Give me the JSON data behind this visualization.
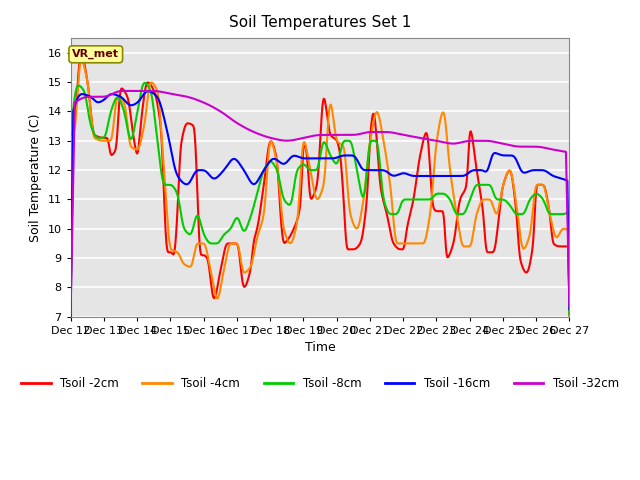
{
  "title": "Soil Temperatures Set 1",
  "xlabel": "Time",
  "ylabel": "Soil Temperature (C)",
  "ylim": [
    7.0,
    16.5
  ],
  "yticks": [
    7.0,
    8.0,
    9.0,
    10.0,
    11.0,
    12.0,
    13.0,
    14.0,
    15.0,
    16.0
  ],
  "background_color": "#ffffff",
  "plot_bg_color": "#e5e5e5",
  "grid_color": "#ffffff",
  "series_colors": [
    "#ff0000",
    "#ff8800",
    "#00cc00",
    "#0000ff",
    "#cc00cc"
  ],
  "series_labels": [
    "Tsoil -2cm",
    "Tsoil -4cm",
    "Tsoil -8cm",
    "Tsoil -16cm",
    "Tsoil -32cm"
  ],
  "x_tick_labels": [
    "Dec 12",
    "Dec 13",
    "Dec 14",
    "Dec 15",
    "Dec 16",
    "Dec 17",
    "Dec 18",
    "Dec 19",
    "Dec 20",
    "Dec 21",
    "Dec 22",
    "Dec 23",
    "Dec 24",
    "Dec 25",
    "Dec 26",
    "Dec 27"
  ],
  "annotation_text": "VR_met",
  "line_width": 1.5,
  "n_points": 720,
  "tsoil_2cm_x": [
    0,
    0.1,
    0.3,
    0.5,
    0.7,
    1.0,
    1.1,
    1.2,
    1.35,
    1.5,
    1.7,
    1.9,
    2.0,
    2.1,
    2.3,
    2.5,
    2.7,
    2.9,
    3.0,
    3.1,
    3.2,
    3.3,
    3.5,
    3.7,
    3.9,
    4.0,
    4.1,
    4.3,
    4.5,
    4.7,
    5.0,
    5.2,
    5.4,
    5.5,
    5.6,
    5.8,
    6.0,
    6.2,
    6.3,
    6.4,
    6.5,
    6.7,
    6.9,
    7.0,
    7.1,
    7.2,
    7.4,
    7.6,
    7.8,
    8.0,
    8.1,
    8.2,
    8.3,
    8.5,
    8.7,
    8.9,
    9.0,
    9.1,
    9.2,
    9.3,
    9.5,
    9.7,
    9.9,
    10.0,
    10.1,
    10.3,
    10.5,
    10.7,
    10.9,
    11.0,
    11.2,
    11.3,
    11.5,
    11.7,
    11.9,
    12.0,
    12.2,
    12.4,
    12.5,
    12.7,
    13.0,
    13.2,
    13.4,
    13.5,
    13.7,
    13.9,
    14.0,
    14.2,
    14.4,
    14.5,
    14.7,
    15.0
  ],
  "tsoil_2cm_y": [
    13.1,
    13.5,
    16.0,
    15.0,
    13.2,
    13.1,
    13.1,
    12.5,
    12.7,
    14.8,
    14.5,
    13.0,
    12.5,
    13.6,
    15.0,
    14.7,
    13.5,
    9.2,
    9.2,
    9.1,
    10.5,
    12.8,
    13.6,
    13.5,
    9.1,
    9.1,
    9.0,
    7.6,
    8.6,
    9.5,
    9.5,
    8.0,
    8.6,
    9.6,
    10.0,
    11.5,
    13.0,
    12.3,
    10.5,
    9.5,
    9.6,
    10.0,
    10.8,
    13.0,
    12.5,
    11.0,
    11.5,
    14.5,
    13.2,
    13.0,
    12.5,
    11.0,
    9.3,
    9.3,
    9.5,
    11.0,
    13.2,
    14.0,
    13.0,
    11.5,
    10.5,
    9.5,
    9.3,
    9.3,
    10.0,
    11.0,
    12.5,
    13.3,
    10.7,
    10.6,
    10.6,
    9.0,
    9.5,
    11.0,
    11.5,
    13.4,
    12.0,
    10.5,
    9.2,
    9.2,
    11.5,
    12.0,
    10.5,
    9.0,
    8.5,
    9.5,
    11.5,
    11.5,
    10.5,
    9.5,
    9.4,
    9.4
  ],
  "tsoil_4cm_x": [
    0,
    0.1,
    0.3,
    0.5,
    0.7,
    1.0,
    1.2,
    1.4,
    1.6,
    1.8,
    2.0,
    2.2,
    2.4,
    2.6,
    2.8,
    3.0,
    3.2,
    3.4,
    3.6,
    3.8,
    4.0,
    4.2,
    4.4,
    4.6,
    4.8,
    5.0,
    5.2,
    5.4,
    5.6,
    5.8,
    6.0,
    6.2,
    6.4,
    6.6,
    6.8,
    7.0,
    7.2,
    7.4,
    7.6,
    7.8,
    8.0,
    8.2,
    8.4,
    8.6,
    8.8,
    9.0,
    9.2,
    9.4,
    9.6,
    9.8,
    10.0,
    10.2,
    10.4,
    10.6,
    10.8,
    11.0,
    11.2,
    11.4,
    11.6,
    11.8,
    12.0,
    12.2,
    12.4,
    12.6,
    12.8,
    13.0,
    13.2,
    13.4,
    13.6,
    13.8,
    14.0,
    14.2,
    14.4,
    14.6,
    14.8,
    15.0
  ],
  "tsoil_4cm_y": [
    13.1,
    13.3,
    15.8,
    15.0,
    13.1,
    13.0,
    13.0,
    14.5,
    14.3,
    12.8,
    12.7,
    13.5,
    15.0,
    14.7,
    12.0,
    9.3,
    9.2,
    8.8,
    8.7,
    9.5,
    9.5,
    8.6,
    7.6,
    8.6,
    9.5,
    9.5,
    8.5,
    8.7,
    9.7,
    10.5,
    13.0,
    12.2,
    10.0,
    9.5,
    10.2,
    13.0,
    12.0,
    11.0,
    11.5,
    14.3,
    13.0,
    12.8,
    10.5,
    10.0,
    11.0,
    13.0,
    14.0,
    13.0,
    11.5,
    9.5,
    9.5,
    9.5,
    9.5,
    9.5,
    10.5,
    13.0,
    14.0,
    12.0,
    10.5,
    9.4,
    9.4,
    10.5,
    11.0,
    11.0,
    10.5,
    11.5,
    12.0,
    10.8,
    9.3,
    9.8,
    11.5,
    11.5,
    10.5,
    9.7,
    10.0,
    9.9
  ],
  "tsoil_8cm_x": [
    0,
    0.2,
    0.4,
    0.6,
    0.8,
    1.0,
    1.2,
    1.4,
    1.6,
    1.8,
    2.0,
    2.2,
    2.4,
    2.6,
    2.8,
    3.0,
    3.2,
    3.4,
    3.6,
    3.8,
    4.0,
    4.2,
    4.4,
    4.6,
    4.8,
    5.0,
    5.2,
    5.4,
    5.6,
    5.8,
    6.0,
    6.2,
    6.4,
    6.6,
    6.8,
    7.0,
    7.2,
    7.4,
    7.6,
    7.8,
    8.0,
    8.2,
    8.4,
    8.6,
    8.8,
    9.0,
    9.2,
    9.4,
    9.6,
    9.8,
    10.0,
    10.2,
    10.4,
    10.6,
    10.8,
    11.0,
    11.2,
    11.4,
    11.6,
    11.8,
    12.0,
    12.2,
    12.4,
    12.6,
    12.8,
    13.0,
    13.2,
    13.4,
    13.6,
    13.8,
    14.0,
    14.2,
    14.4,
    14.6,
    14.8,
    15.0
  ],
  "tsoil_8cm_y": [
    13.3,
    14.9,
    14.7,
    13.5,
    13.1,
    13.1,
    14.0,
    14.5,
    14.0,
    13.0,
    14.0,
    15.0,
    14.7,
    13.0,
    11.5,
    11.5,
    11.2,
    10.0,
    9.8,
    10.5,
    9.8,
    9.5,
    9.5,
    9.8,
    10.0,
    10.4,
    9.9,
    10.4,
    11.2,
    12.0,
    12.3,
    12.0,
    11.0,
    10.8,
    12.0,
    12.2,
    12.0,
    12.0,
    13.0,
    12.5,
    12.2,
    13.0,
    13.0,
    12.0,
    11.0,
    13.0,
    13.0,
    11.0,
    10.5,
    10.5,
    11.0,
    11.0,
    11.0,
    11.0,
    11.0,
    11.2,
    11.2,
    11.0,
    10.5,
    10.5,
    11.0,
    11.5,
    11.5,
    11.5,
    11.0,
    11.0,
    10.8,
    10.5,
    10.5,
    11.0,
    11.2,
    11.0,
    10.5,
    10.5,
    10.5,
    10.6
  ],
  "tsoil_16cm_x": [
    0,
    0.3,
    0.6,
    0.8,
    1.0,
    1.2,
    1.5,
    1.8,
    2.0,
    2.3,
    2.6,
    2.9,
    3.2,
    3.5,
    3.8,
    4.0,
    4.3,
    4.6,
    4.9,
    5.2,
    5.5,
    5.8,
    6.1,
    6.4,
    6.7,
    7.0,
    7.3,
    7.6,
    7.9,
    8.2,
    8.5,
    8.8,
    9.1,
    9.4,
    9.7,
    10.0,
    10.3,
    10.6,
    10.9,
    11.2,
    11.5,
    11.8,
    12.1,
    12.4,
    12.5,
    12.7,
    13.0,
    13.3,
    13.6,
    13.9,
    14.2,
    14.5,
    14.8,
    15.0
  ],
  "tsoil_16cm_y": [
    13.7,
    14.6,
    14.5,
    14.3,
    14.4,
    14.6,
    14.5,
    14.2,
    14.3,
    14.7,
    14.5,
    13.3,
    11.8,
    11.5,
    12.0,
    12.0,
    11.7,
    12.0,
    12.4,
    12.0,
    11.5,
    12.0,
    12.4,
    12.2,
    12.5,
    12.4,
    12.4,
    12.4,
    12.4,
    12.5,
    12.5,
    12.0,
    12.0,
    12.0,
    11.8,
    11.9,
    11.8,
    11.8,
    11.8,
    11.8,
    11.8,
    11.8,
    12.0,
    12.0,
    11.9,
    12.6,
    12.5,
    12.5,
    11.9,
    12.0,
    12.0,
    11.8,
    11.7,
    11.6
  ],
  "tsoil_32cm_x": [
    0,
    0.5,
    1.0,
    1.5,
    2.0,
    2.5,
    3.0,
    3.5,
    4.0,
    4.5,
    5.0,
    5.5,
    6.0,
    6.5,
    7.0,
    7.5,
    8.0,
    8.5,
    9.0,
    9.5,
    10.0,
    10.5,
    11.0,
    11.5,
    12.0,
    12.5,
    13.0,
    13.5,
    14.0,
    14.5,
    15.0
  ],
  "tsoil_32cm_y": [
    14.2,
    14.5,
    14.5,
    14.7,
    14.7,
    14.7,
    14.6,
    14.5,
    14.3,
    14.0,
    13.6,
    13.3,
    13.1,
    13.0,
    13.1,
    13.2,
    13.2,
    13.2,
    13.3,
    13.3,
    13.2,
    13.1,
    13.0,
    12.9,
    13.0,
    13.0,
    12.9,
    12.8,
    12.8,
    12.7,
    12.6
  ]
}
